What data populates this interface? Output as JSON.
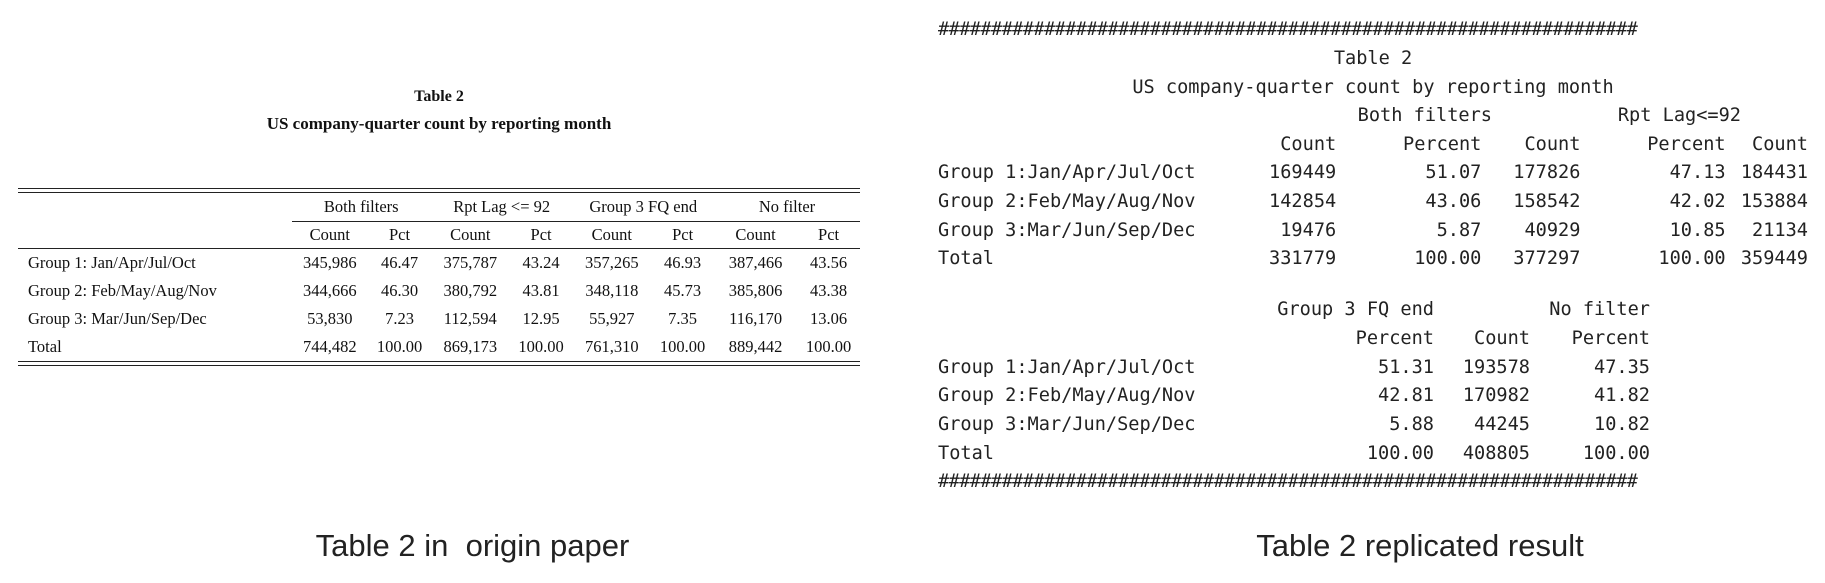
{
  "paper": {
    "title": "Table 2",
    "subtitle": "US company-quarter count by reporting month",
    "groups": [
      "Both filters",
      "Rpt Lag <= 92",
      "Group 3 FQ end",
      "No filter"
    ],
    "subheaders": [
      "Count",
      "Pct",
      "Count",
      "Pct",
      "Count",
      "Pct",
      "Count",
      "Pct"
    ],
    "rows": [
      {
        "label": "Group 1: Jan/Apr/Jul/Oct",
        "cells": [
          "345,986",
          "46.47",
          "375,787",
          "43.24",
          "357,265",
          "46.93",
          "387,466",
          "43.56"
        ]
      },
      {
        "label": "Group 2: Feb/May/Aug/Nov",
        "cells": [
          "344,666",
          "46.30",
          "380,792",
          "43.81",
          "348,118",
          "45.73",
          "385,806",
          "43.38"
        ]
      },
      {
        "label": "Group 3: Mar/Jun/Sep/Dec",
        "cells": [
          "53,830",
          "7.23",
          "112,594",
          "12.95",
          "55,927",
          "7.35",
          "116,170",
          "13.06"
        ]
      },
      {
        "label": "Total",
        "cells": [
          "744,482",
          "100.00",
          "869,173",
          "100.00",
          "761,310",
          "100.00",
          "889,442",
          "100.00"
        ]
      }
    ]
  },
  "console": {
    "hash_line": "##################################################################",
    "title": "Table 2",
    "subtitle": "US company-quarter count by reporting month",
    "block1": {
      "group_headers": [
        "Both filters",
        "Rpt Lag<=92"
      ],
      "col_headers": [
        "Count",
        "Percent",
        "Count",
        "Percent",
        "Count"
      ],
      "rows": [
        {
          "label": "Group 1:Jan/Apr/Jul/Oct",
          "cells": [
            "169449",
            "51.07",
            "177826",
            "47.13",
            "184431"
          ]
        },
        {
          "label": "Group 2:Feb/May/Aug/Nov",
          "cells": [
            "142854",
            "43.06",
            "158542",
            "42.02",
            "153884"
          ]
        },
        {
          "label": "Group 3:Mar/Jun/Sep/Dec",
          "cells": [
            "19476",
            "5.87",
            "40929",
            "10.85",
            "21134"
          ]
        },
        {
          "label": "Total",
          "cells": [
            "331779",
            "100.00",
            "377297",
            "100.00",
            "359449"
          ]
        }
      ]
    },
    "block2": {
      "group_headers": [
        "Group 3 FQ end",
        "No filter"
      ],
      "col_headers": [
        "Percent",
        "Count",
        "Percent"
      ],
      "rows": [
        {
          "label": "Group 1:Jan/Apr/Jul/Oct",
          "cells": [
            "51.31",
            "193578",
            "47.35"
          ]
        },
        {
          "label": "Group 2:Feb/May/Aug/Nov",
          "cells": [
            "42.81",
            "170982",
            "41.82"
          ]
        },
        {
          "label": "Group 3:Mar/Jun/Sep/Dec",
          "cells": [
            "5.88",
            "44245",
            "10.82"
          ]
        },
        {
          "label": "Total",
          "cells": [
            "100.00",
            "408805",
            "100.00"
          ]
        }
      ]
    }
  },
  "captions": {
    "left": "Table 2 in  origin paper",
    "right": "Table 2 replicated result"
  }
}
